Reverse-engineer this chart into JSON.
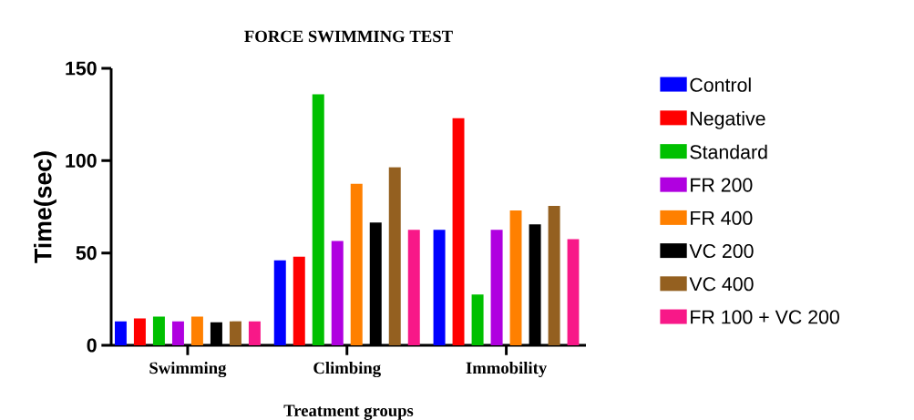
{
  "chart_data": {
    "type": "bar",
    "title": "FORCE SWIMMING TEST",
    "xlabel": "Treatment groups",
    "ylabel": "Time(sec)",
    "categories": [
      "Swimming",
      "Climbing",
      "Immobility"
    ],
    "series": [
      {
        "name": "Control",
        "color": "#0000ff",
        "values": [
          13,
          46,
          62.5
        ]
      },
      {
        "name": "Negative",
        "color": "#ff0000",
        "values": [
          14.5,
          48,
          123
        ]
      },
      {
        "name": "Standard",
        "color": "#00c000",
        "values": [
          15.5,
          136,
          27.5
        ]
      },
      {
        "name": "FR 200",
        "color": "#b000e0",
        "values": [
          13,
          56.5,
          62.5
        ]
      },
      {
        "name": "FR 400",
        "color": "#ff8000",
        "values": [
          15.5,
          87.5,
          73
        ]
      },
      {
        "name": "VC 200",
        "color": "#000000",
        "values": [
          12.5,
          66.5,
          65.5
        ]
      },
      {
        "name": "VC 400",
        "color": "#946020",
        "values": [
          13,
          96.5,
          75.5
        ]
      },
      {
        "name": "FR 100 + VC 200",
        "color": "#f81888",
        "values": [
          13,
          62.5,
          57.5
        ]
      }
    ],
    "ylim": [
      0,
      150
    ],
    "yticks": [
      0,
      50,
      100,
      150
    ],
    "legend": "right"
  }
}
